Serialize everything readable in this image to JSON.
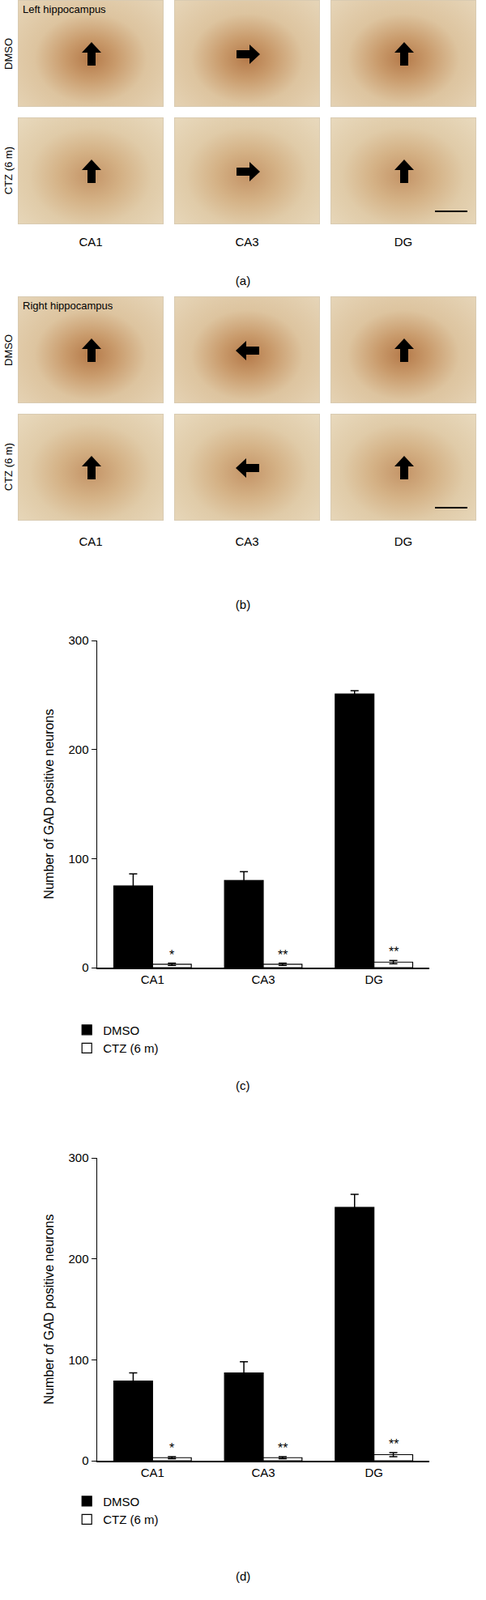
{
  "figure": {
    "panels": [
      {
        "label": "(a)",
        "title": "Left hippocampus",
        "rows": [
          "DMSO",
          "CTZ (6 m)"
        ],
        "columns": [
          "CA1",
          "CA3",
          "DG"
        ]
      },
      {
        "label": "(b)",
        "title": "Right hippocampus",
        "rows": [
          "DMSO",
          "CTZ (6 m)"
        ],
        "columns": [
          "CA1",
          "CA3",
          "DG"
        ]
      }
    ]
  },
  "chart_data": [
    {
      "type": "bar",
      "label": "(c)",
      "categories": [
        "CA1",
        "CA3",
        "DG"
      ],
      "y_label": "Number of GAD positive neurons",
      "ylim": [
        0,
        300
      ],
      "yticks": [
        0,
        100,
        200,
        300
      ],
      "grid": false,
      "legend": "bottom left",
      "series": [
        {
          "name": "DMSO",
          "color": "#000000",
          "values": [
            75,
            80,
            251
          ],
          "errors": [
            11,
            8,
            3
          ]
        },
        {
          "name": "CTZ (6 m)",
          "color": "#ffffff",
          "values": [
            3,
            3,
            5
          ],
          "errors": [
            1,
            1,
            1.5
          ],
          "significance": [
            "*",
            "**",
            "**"
          ]
        }
      ]
    },
    {
      "type": "bar",
      "label": "(d)",
      "categories": [
        "CA1",
        "CA3",
        "DG"
      ],
      "y_label": "Number of GAD positive neurons",
      "ylim": [
        0,
        300
      ],
      "yticks": [
        0,
        100,
        200,
        300
      ],
      "grid": false,
      "legend": "bottom left",
      "series": [
        {
          "name": "DMSO",
          "color": "#000000",
          "values": [
            79,
            87,
            251
          ],
          "errors": [
            8,
            11,
            13
          ]
        },
        {
          "name": "CTZ (6 m)",
          "color": "#ffffff",
          "values": [
            3,
            3,
            6
          ],
          "errors": [
            1,
            1,
            2
          ],
          "significance": [
            "*",
            "**",
            "**"
          ]
        }
      ]
    }
  ]
}
